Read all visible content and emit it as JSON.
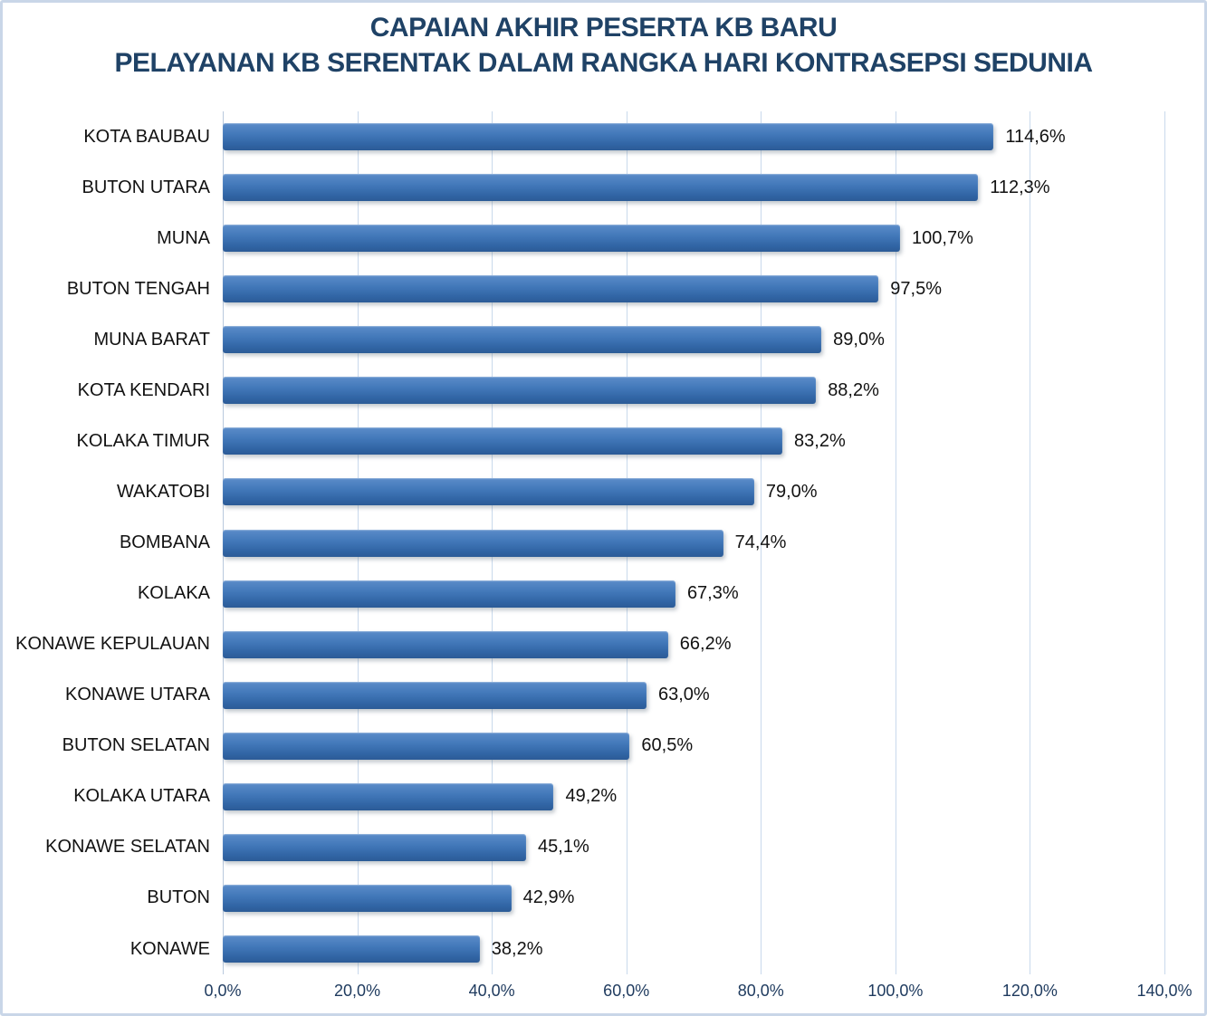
{
  "title": {
    "line1": "CAPAIAN AKHIR PESERTA KB BARU",
    "line2": "PELAYANAN KB SERENTAK DALAM RANGKA HARI KONTRASEPSI SEDUNIA"
  },
  "colors": {
    "title_text": "#1f4266",
    "bar_fill": "#3a6fb2",
    "gridline": "#c9d9ec",
    "axis_tick_text": "#1e3a5e",
    "label_text": "#121212",
    "frame_border": "#c9d6e8"
  },
  "chart_data": {
    "type": "bar",
    "orientation": "horizontal",
    "title": "CAPAIAN AKHIR PESERTA KB BARU PELAYANAN KB SERENTAK DALAM RANGKA HARI KONTRASEPSI SEDUNIA",
    "categories": [
      "KOTA BAUBAU",
      "BUTON UTARA",
      "MUNA",
      "BUTON TENGAH",
      "MUNA BARAT",
      "KOTA KENDARI",
      "KOLAKA TIMUR",
      "WAKATOBI",
      "BOMBANA",
      "KOLAKA",
      "KONAWE KEPULAUAN",
      "KONAWE UTARA",
      "BUTON SELATAN",
      "KOLAKA UTARA",
      "KONAWE SELATAN",
      "BUTON",
      "KONAWE"
    ],
    "values": [
      114.6,
      112.3,
      100.7,
      97.5,
      89.0,
      88.2,
      83.2,
      79.0,
      74.4,
      67.3,
      66.2,
      63.0,
      60.5,
      49.2,
      45.1,
      42.9,
      38.2
    ],
    "value_labels": [
      "114,6%",
      "112,3%",
      "100,7%",
      "97,5%",
      "89,0%",
      "88,2%",
      "83,2%",
      "79,0%",
      "74,4%",
      "67,3%",
      "66,2%",
      "63,0%",
      "60,5%",
      "49,2%",
      "45,1%",
      "42,9%",
      "38,2%"
    ],
    "x_ticks": [
      "0,0%",
      "20,0%",
      "40,0%",
      "60,0%",
      "80,0%",
      "100,0%",
      "120,0%",
      "140,0%"
    ],
    "xlim": [
      0,
      140
    ],
    "xlabel": "",
    "ylabel": "",
    "grid": true,
    "legend": false,
    "data_labels": true
  }
}
